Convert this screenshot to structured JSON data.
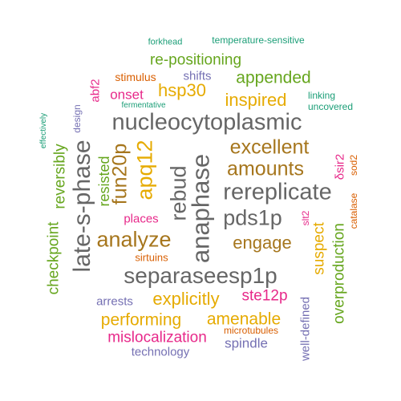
{
  "colors": {
    "teal": "#1b9e77",
    "orange": "#d95f02",
    "purple": "#7570b3",
    "magenta": "#e7298a",
    "green": "#66a61e",
    "gold": "#e6ab02",
    "brown": "#a6761d",
    "gray": "#666666"
  },
  "words": [
    "forkhead",
    "temperature-sensitive",
    "re-positioning",
    "stimulus",
    "shifts",
    "appended",
    "abf2",
    "hsp30",
    "onset",
    "inspired",
    "linking",
    "fermentative",
    "uncovered",
    "design",
    "effectively",
    "nucleocytoplasmic",
    "late-s-phase",
    "reversibly",
    "fun20p",
    "apq12",
    "rebud",
    "anaphase",
    "excellent",
    "amounts",
    "δsir2",
    "sod2",
    "resisted",
    "rereplicate",
    "catalase",
    "places",
    "pds1p",
    "slt2",
    "analyze",
    "checkpoint",
    "engage",
    "sirtuins",
    "suspect",
    "overproduction",
    "separaseesp1p",
    "arrests",
    "explicitly",
    "ste12p",
    "performing",
    "amenable",
    "well-defined",
    "microtubules",
    "mislocalization",
    "spindle",
    "technology"
  ]
}
